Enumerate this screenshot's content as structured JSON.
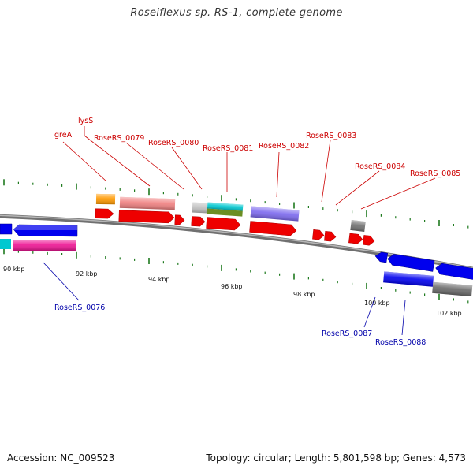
{
  "title": "Roseiflexus sp. RS-1, complete genome",
  "footer": {
    "accession": "Accession: NC_009523",
    "summary": "Topology: circular; Length: 5,801,598 bp; Genes: 4,573"
  },
  "colors": {
    "forward_label": "#cc0000",
    "reverse_label": "#0000aa",
    "backbone": "#808080",
    "tick": "#1e7a1e",
    "cds_forward": "#ee0000",
    "cds_reverse": "#0000ee"
  },
  "scale_labels": [
    "90 kbp",
    "92 kbp",
    "94 kbp",
    "96 kbp",
    "98 kbp",
    "100 kbp",
    "102 kbp"
  ],
  "forward_labels": [
    "greA",
    "lysS",
    "RoseRS_0079",
    "RoseRS_0080",
    "RoseRS_0081",
    "RoseRS_0082",
    "RoseRS_0083",
    "RoseRS_0084",
    "RoseRS_0085"
  ],
  "reverse_labels": [
    "RoseRS_0076",
    "RoseRS_0087",
    "RoseRS_0088"
  ]
}
